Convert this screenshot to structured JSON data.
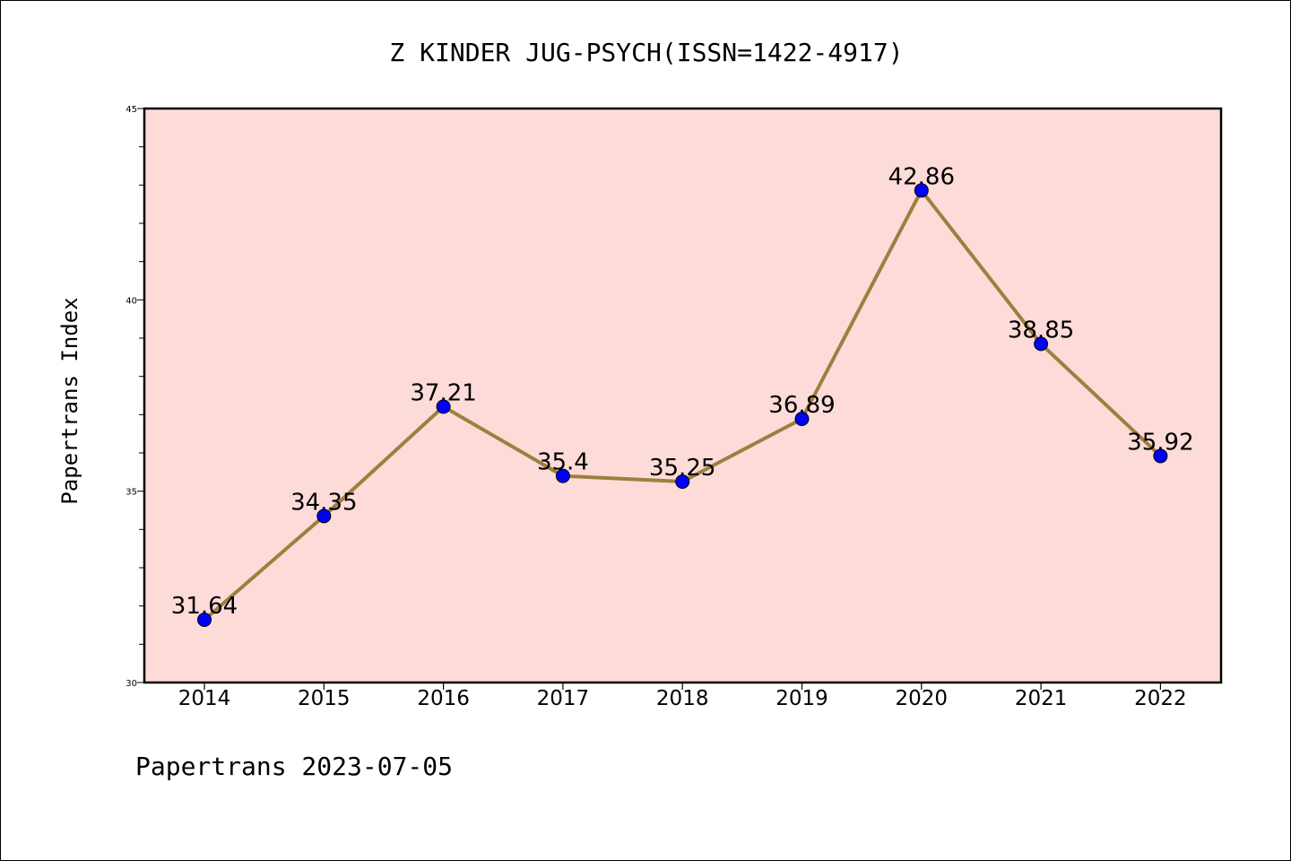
{
  "chart_data": {
    "type": "line",
    "title": "Z KINDER JUG-PSYCH(ISSN=1422-4917)",
    "xlabel": "",
    "ylabel": "Papertrans Index",
    "categories": [
      "2014",
      "2015",
      "2016",
      "2017",
      "2018",
      "2019",
      "2020",
      "2021",
      "2022"
    ],
    "values": [
      31.64,
      34.35,
      37.21,
      35.4,
      35.25,
      36.89,
      42.86,
      38.85,
      35.92
    ],
    "data_labels": [
      "31.64",
      "34.35",
      "37.21",
      "35.4",
      "35.25",
      "36.89",
      "42.86",
      "38.85",
      "35.92"
    ],
    "ylim": [
      30,
      45
    ],
    "yticks": [
      "30",
      "35",
      "40",
      "45"
    ],
    "grid": false,
    "legend": "none",
    "colors": {
      "plot_background": "#fddbd8",
      "line": "#9c8040",
      "marker": "#0000ff",
      "axis": "#000000"
    }
  },
  "footer": "Papertrans 2023-07-05"
}
